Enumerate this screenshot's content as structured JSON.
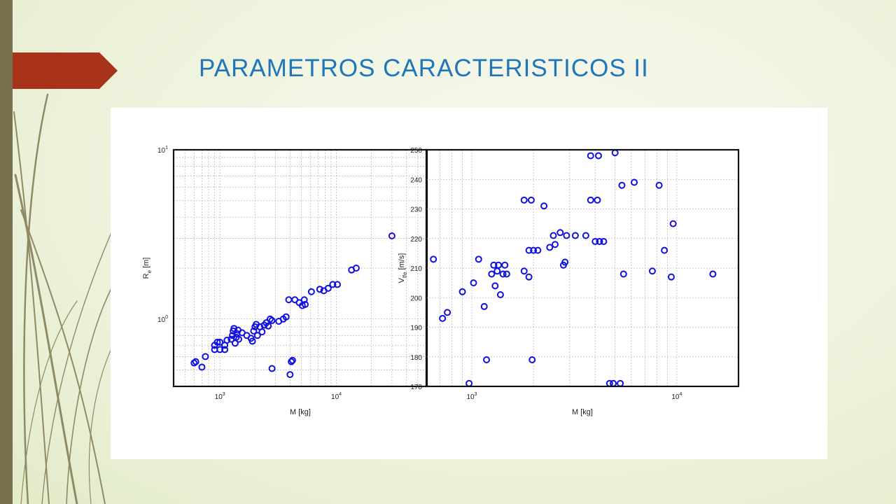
{
  "slide": {
    "title": "PARAMETROS CARACTERISTICOS II",
    "accent_color": "#2176b8",
    "arrow_color": "#a8321a",
    "bar_color": "#78704f"
  },
  "chart_data": [
    {
      "type": "scatter",
      "xlabel": "M [kg]",
      "ylabel": "R_e [m]",
      "xscale": "log",
      "yscale": "log",
      "xlim": [
        400,
        60000
      ],
      "ylim": [
        0.4,
        10
      ],
      "grid": true,
      "marker_color": "#1010e0",
      "x_ticks": [
        {
          "value": 1000,
          "base": "10",
          "exp": "3"
        },
        {
          "value": 10000,
          "base": "10",
          "exp": "4"
        }
      ],
      "y_ticks": [
        {
          "value": 1,
          "base": "10",
          "exp": "0"
        },
        {
          "value": 10,
          "base": "10",
          "exp": "1"
        }
      ],
      "points": [
        [
          600,
          0.55
        ],
        [
          620,
          0.56
        ],
        [
          700,
          0.52
        ],
        [
          750,
          0.6
        ],
        [
          900,
          0.66
        ],
        [
          900,
          0.7
        ],
        [
          950,
          0.73
        ],
        [
          1000,
          0.66
        ],
        [
          1000,
          0.73
        ],
        [
          1100,
          0.7
        ],
        [
          1100,
          0.66
        ],
        [
          1150,
          0.75
        ],
        [
          1250,
          0.76
        ],
        [
          1280,
          0.8
        ],
        [
          1300,
          0.85
        ],
        [
          1320,
          0.88
        ],
        [
          1350,
          0.72
        ],
        [
          1380,
          0.78
        ],
        [
          1400,
          0.82
        ],
        [
          1430,
          0.86
        ],
        [
          1450,
          0.76
        ],
        [
          1550,
          0.83
        ],
        [
          1700,
          0.8
        ],
        [
          1850,
          0.77
        ],
        [
          1900,
          0.74
        ],
        [
          1950,
          0.85
        ],
        [
          2000,
          0.9
        ],
        [
          2050,
          0.93
        ],
        [
          2100,
          0.8
        ],
        [
          2200,
          0.9
        ],
        [
          2300,
          0.84
        ],
        [
          2400,
          0.92
        ],
        [
          2500,
          0.95
        ],
        [
          2600,
          0.91
        ],
        [
          2700,
          1.0
        ],
        [
          2800,
          0.98
        ],
        [
          2800,
          0.51
        ],
        [
          3200,
          0.97
        ],
        [
          3500,
          1.0
        ],
        [
          3700,
          1.03
        ],
        [
          3900,
          1.3
        ],
        [
          4000,
          0.47
        ],
        [
          4100,
          0.56
        ],
        [
          4200,
          0.57
        ],
        [
          4400,
          1.3
        ],
        [
          4800,
          1.25
        ],
        [
          5100,
          1.2
        ],
        [
          5300,
          1.3
        ],
        [
          5400,
          1.22
        ],
        [
          6100,
          1.45
        ],
        [
          7200,
          1.5
        ],
        [
          7800,
          1.47
        ],
        [
          8500,
          1.52
        ],
        [
          9300,
          1.6
        ],
        [
          10200,
          1.6
        ],
        [
          13500,
          1.95
        ],
        [
          14800,
          2.0
        ],
        [
          30000,
          3.1
        ]
      ]
    },
    {
      "type": "scatter",
      "xlabel": "M [kg]",
      "ylabel": "V_lfe [m/s]",
      "xscale": "log",
      "yscale": "linear",
      "xlim": [
        600,
        20000
      ],
      "ylim": [
        170,
        250
      ],
      "grid": true,
      "marker_color": "#1010e0",
      "x_ticks": [
        {
          "value": 1000,
          "base": "10",
          "exp": "3"
        },
        {
          "value": 10000,
          "base": "10",
          "exp": "4"
        }
      ],
      "y_ticks": [
        170,
        180,
        190,
        200,
        210,
        220,
        230,
        240,
        250
      ],
      "points": [
        [
          650,
          213
        ],
        [
          720,
          193
        ],
        [
          760,
          195
        ],
        [
          900,
          202
        ],
        [
          970,
          171
        ],
        [
          1020,
          205
        ],
        [
          1080,
          213
        ],
        [
          1150,
          197
        ],
        [
          1180,
          179
        ],
        [
          1250,
          208
        ],
        [
          1280,
          211
        ],
        [
          1300,
          204
        ],
        [
          1330,
          209
        ],
        [
          1350,
          211
        ],
        [
          1380,
          201
        ],
        [
          1420,
          208
        ],
        [
          1450,
          211
        ],
        [
          1480,
          208
        ],
        [
          1800,
          209
        ],
        [
          1800,
          233
        ],
        [
          1900,
          216
        ],
        [
          1900,
          207
        ],
        [
          1950,
          233
        ],
        [
          1970,
          179
        ],
        [
          2000,
          216
        ],
        [
          2100,
          216
        ],
        [
          2250,
          231
        ],
        [
          2400,
          217
        ],
        [
          2500,
          221
        ],
        [
          2550,
          218
        ],
        [
          2700,
          222
        ],
        [
          2800,
          211
        ],
        [
          2850,
          212
        ],
        [
          2900,
          221
        ],
        [
          3200,
          221
        ],
        [
          3600,
          221
        ],
        [
          3800,
          233
        ],
        [
          3800,
          248
        ],
        [
          4000,
          219
        ],
        [
          4100,
          233
        ],
        [
          4150,
          248
        ],
        [
          4200,
          219
        ],
        [
          4400,
          219
        ],
        [
          4700,
          171
        ],
        [
          4900,
          171
        ],
        [
          5000,
          249
        ],
        [
          5300,
          171
        ],
        [
          5400,
          238
        ],
        [
          5500,
          208
        ],
        [
          6200,
          239
        ],
        [
          7600,
          209
        ],
        [
          8200,
          238
        ],
        [
          8700,
          216
        ],
        [
          9400,
          207
        ],
        [
          9600,
          225
        ],
        [
          15000,
          208
        ]
      ]
    }
  ]
}
